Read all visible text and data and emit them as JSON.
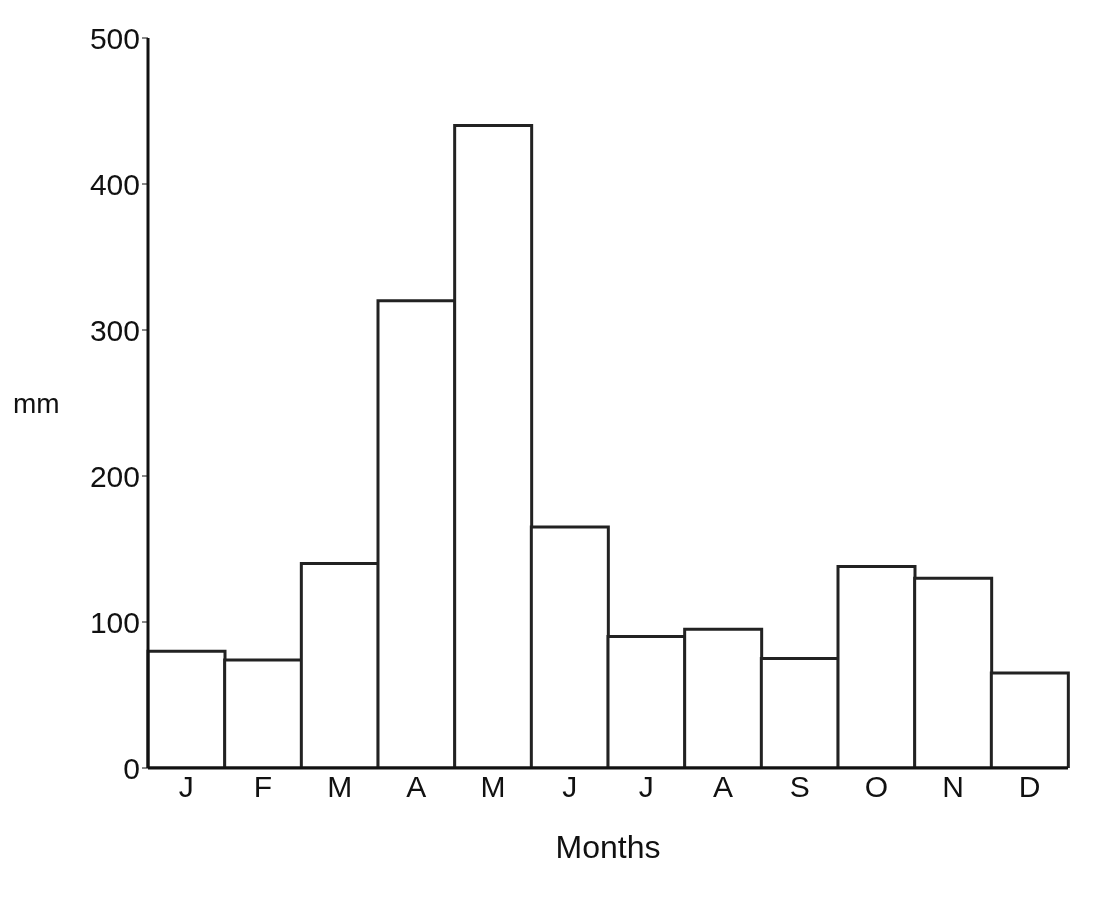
{
  "chart_data": {
    "type": "bar",
    "xlabel": "Months",
    "ylabel": "mm",
    "categories": [
      "J",
      "F",
      "M",
      "A",
      "M",
      "J",
      "J",
      "A",
      "S",
      "O",
      "N",
      "D"
    ],
    "values": [
      80,
      74,
      140,
      320,
      440,
      165,
      90,
      95,
      75,
      138,
      130,
      65
    ],
    "color": "#222222",
    "ylim": [
      0,
      500
    ],
    "yticks": [
      0,
      100,
      200,
      300,
      400,
      500
    ],
    "grid": false
  }
}
